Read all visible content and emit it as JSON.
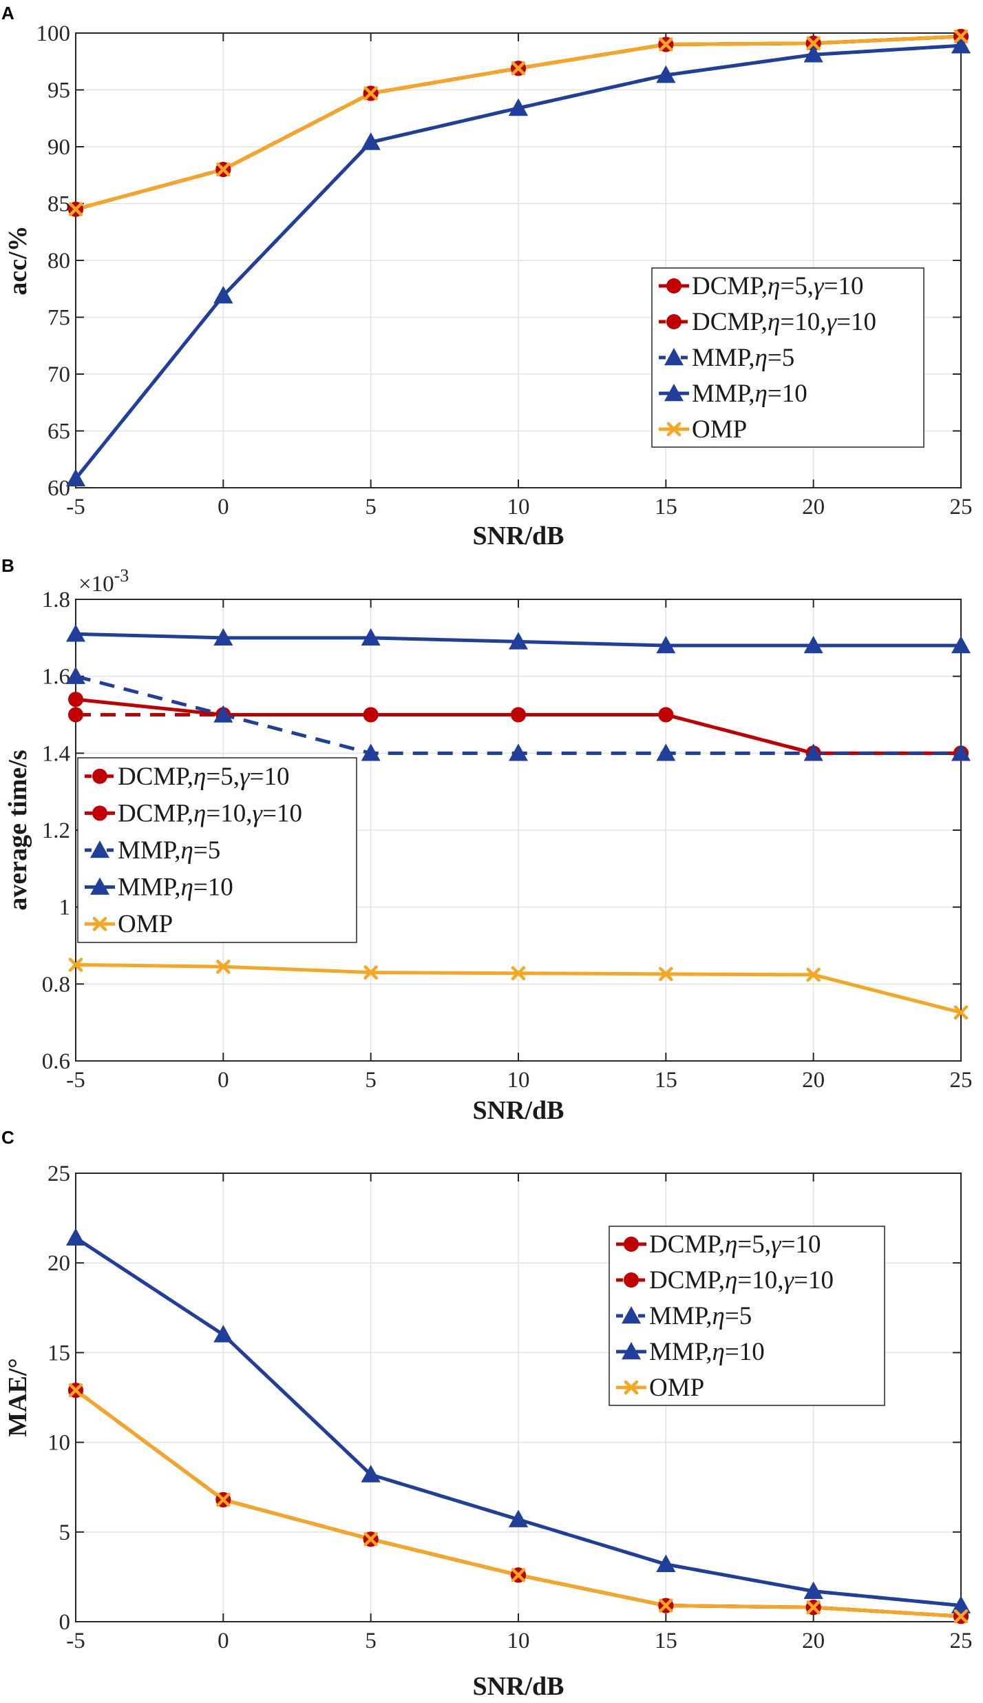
{
  "colors": {
    "dcmp": "#c00000",
    "mmp": "#1f3f9a",
    "omp": "#f5a623",
    "grid": "#e2e2e2",
    "axis": "#262626"
  },
  "chart_data": [
    {
      "panel": "A",
      "type": "line",
      "xlabel": "SNR/dB",
      "ylabel": "acc/%",
      "xlim": [
        -5,
        25
      ],
      "ylim": [
        60,
        100
      ],
      "xticks": [
        "-5",
        "0",
        "5",
        "10",
        "15",
        "20",
        "25"
      ],
      "yticks": [
        "60",
        "65",
        "70",
        "75",
        "80",
        "85",
        "90",
        "95",
        "100"
      ],
      "exponent": "",
      "legend_position": "right",
      "x": [
        -5,
        0,
        5,
        10,
        15,
        20,
        25
      ],
      "series": [
        {
          "key": "dcmp5",
          "name": "DCMP,η=5,γ=10",
          "legend": [
            "DCMP,",
            "η",
            "=5,",
            "γ",
            "=10"
          ],
          "color": "dcmp",
          "marker": "circle",
          "dash": false,
          "values": [
            84.5,
            88.0,
            94.7,
            96.9,
            99.0,
            99.1,
            99.7
          ]
        },
        {
          "key": "dcmp10",
          "name": "DCMP,η=10,γ=10",
          "legend": [
            "DCMP,",
            "η",
            "=10,",
            "γ",
            "=10"
          ],
          "color": "dcmp",
          "marker": "circle",
          "dash": true,
          "values": [
            84.5,
            88.0,
            94.7,
            96.9,
            99.0,
            99.1,
            99.7
          ]
        },
        {
          "key": "mmp5",
          "name": "MMP,η=5",
          "legend": [
            "MMP,",
            "η",
            "=5"
          ],
          "color": "mmp",
          "marker": "triangle",
          "dash": true,
          "values": [
            60.8,
            76.9,
            90.4,
            93.4,
            96.3,
            98.1,
            98.9
          ]
        },
        {
          "key": "mmp10",
          "name": "MMP,η=10",
          "legend": [
            "MMP,",
            "η",
            "=10"
          ],
          "color": "mmp",
          "marker": "triangle",
          "dash": false,
          "values": [
            60.8,
            76.9,
            90.4,
            93.4,
            96.3,
            98.1,
            98.9
          ]
        },
        {
          "key": "omp",
          "name": "OMP",
          "legend": [
            "OMP"
          ],
          "color": "omp",
          "marker": "x",
          "dash": false,
          "values": [
            84.5,
            88.0,
            94.7,
            96.9,
            99.0,
            99.1,
            99.7
          ]
        }
      ]
    },
    {
      "panel": "B",
      "type": "line",
      "xlabel": "SNR/dB",
      "ylabel": "average time/s",
      "xlim": [
        -5,
        25
      ],
      "ylim": [
        0.6,
        1.8
      ],
      "xticks": [
        "-5",
        "0",
        "5",
        "10",
        "15",
        "20",
        "25"
      ],
      "yticks": [
        "0.6",
        "0.8",
        "1",
        "1.2",
        "1.4",
        "1.6",
        "1.8"
      ],
      "exponent": "×10",
      "exponent_power": "-3",
      "legend_position": "left",
      "x": [
        -5,
        0,
        5,
        10,
        15,
        20,
        25
      ],
      "series": [
        {
          "key": "dcmp5",
          "name": "DCMP,η=5,γ=10",
          "legend": [
            "DCMP,",
            "η",
            "=5,",
            "γ",
            "=10"
          ],
          "color": "dcmp",
          "marker": "circle",
          "dash": true,
          "values": [
            1.5,
            1.5,
            1.5,
            1.5,
            1.5,
            1.4,
            1.4
          ]
        },
        {
          "key": "dcmp10",
          "name": "DCMP,η=10,γ=10",
          "legend": [
            "DCMP,",
            "η",
            "=10,",
            "γ",
            "=10"
          ],
          "color": "dcmp",
          "marker": "circle",
          "dash": false,
          "values": [
            1.54,
            1.5,
            1.5,
            1.5,
            1.5,
            1.4,
            1.4
          ]
        },
        {
          "key": "mmp5",
          "name": "MMP,η=5",
          "legend": [
            "MMP,",
            "η",
            "=5"
          ],
          "color": "mmp",
          "marker": "triangle",
          "dash": true,
          "values": [
            1.6,
            1.5,
            1.4,
            1.4,
            1.4,
            1.4,
            1.4
          ]
        },
        {
          "key": "mmp10",
          "name": "MMP,η=10",
          "legend": [
            "MMP,",
            "η",
            "=10"
          ],
          "color": "mmp",
          "marker": "triangle",
          "dash": false,
          "values": [
            1.71,
            1.7,
            1.7,
            1.69,
            1.68,
            1.68,
            1.68
          ]
        },
        {
          "key": "omp",
          "name": "OMP",
          "legend": [
            "OMP"
          ],
          "color": "omp",
          "marker": "x",
          "dash": false,
          "values": [
            0.85,
            0.845,
            0.83,
            0.828,
            0.826,
            0.824,
            0.726
          ]
        }
      ]
    },
    {
      "panel": "C",
      "type": "line",
      "xlabel": "SNR/dB",
      "ylabel": "MAE/°",
      "xlim": [
        -5,
        25
      ],
      "ylim": [
        0,
        25
      ],
      "xticks": [
        "-5",
        "0",
        "5",
        "10",
        "15",
        "20",
        "25"
      ],
      "yticks": [
        "0",
        "5",
        "10",
        "15",
        "20",
        "25"
      ],
      "exponent": "",
      "legend_position": "right",
      "x": [
        -5,
        0,
        5,
        10,
        15,
        20,
        25
      ],
      "series": [
        {
          "key": "dcmp5",
          "name": "DCMP,η=5,γ=10",
          "legend": [
            "DCMP,",
            "η",
            "=5,",
            "γ",
            "=10"
          ],
          "color": "dcmp",
          "marker": "circle",
          "dash": false,
          "values": [
            12.9,
            6.8,
            4.6,
            2.6,
            0.9,
            0.8,
            0.3
          ]
        },
        {
          "key": "dcmp10",
          "name": "DCMP,η=10,γ=10",
          "legend": [
            "DCMP,",
            "η",
            "=10,",
            "γ",
            "=10"
          ],
          "color": "dcmp",
          "marker": "circle",
          "dash": true,
          "values": [
            12.9,
            6.8,
            4.6,
            2.6,
            0.9,
            0.8,
            0.3
          ]
        },
        {
          "key": "mmp5",
          "name": "MMP,η=5",
          "legend": [
            "MMP,",
            "η",
            "=5"
          ],
          "color": "mmp",
          "marker": "triangle",
          "dash": true,
          "values": [
            21.4,
            16.0,
            8.2,
            5.7,
            3.2,
            1.7,
            0.9
          ]
        },
        {
          "key": "mmp10",
          "name": "MMP,η=10",
          "legend": [
            "MMP,",
            "η",
            "=10"
          ],
          "color": "mmp",
          "marker": "triangle",
          "dash": false,
          "values": [
            21.4,
            16.0,
            8.2,
            5.7,
            3.2,
            1.7,
            0.9
          ]
        },
        {
          "key": "omp",
          "name": "OMP",
          "legend": [
            "OMP"
          ],
          "color": "omp",
          "marker": "x",
          "dash": false,
          "values": [
            12.9,
            6.8,
            4.6,
            2.6,
            0.9,
            0.8,
            0.3
          ]
        }
      ]
    }
  ]
}
